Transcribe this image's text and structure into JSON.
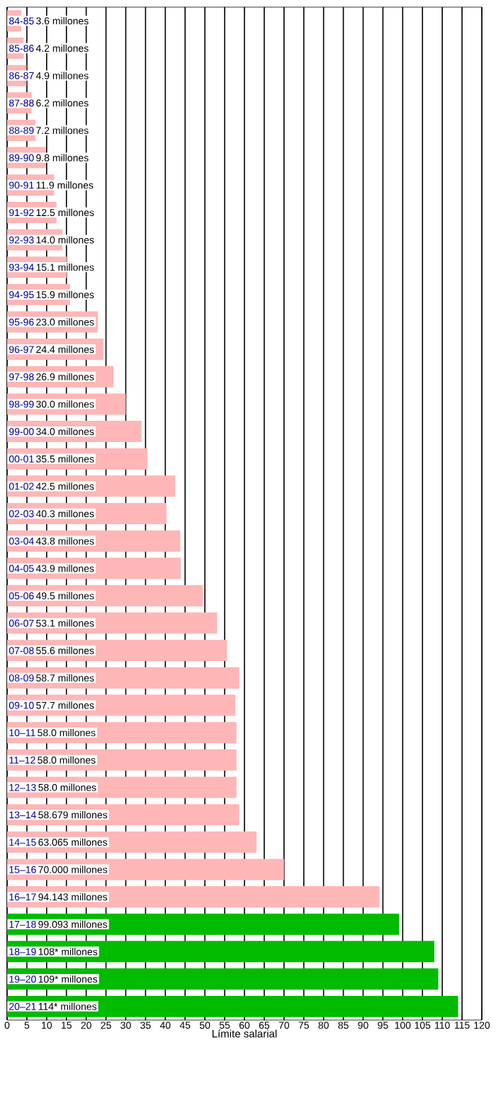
{
  "chart_data": {
    "type": "bar",
    "orientation": "horizontal",
    "xlabel": "Límite salarial",
    "categories": [
      "84-85",
      "85-86",
      "86-87",
      "87-88",
      "88-89",
      "89-90",
      "90-91",
      "91-92",
      "92-93",
      "93-94",
      "94-95",
      "95-96",
      "96-97",
      "97-98",
      "98-99",
      "99-00",
      "00-01",
      "01-02",
      "02-03",
      "03-04",
      "04-05",
      "05-06",
      "06-07",
      "07-08",
      "08-09",
      "09-10",
      "10–11",
      "11–12",
      "12–13",
      "13–14",
      "14–15",
      "15–16",
      "16–17",
      "17–18",
      "18–19",
      "19–20",
      "20–21"
    ],
    "values": [
      3.6,
      4.2,
      4.9,
      6.2,
      7.2,
      9.8,
      11.9,
      12.5,
      14.0,
      15.1,
      15.9,
      23.0,
      24.4,
      26.9,
      30.0,
      34.0,
      35.5,
      42.5,
      40.3,
      43.8,
      43.9,
      49.5,
      53.1,
      55.6,
      58.7,
      57.7,
      58.0,
      58.0,
      58.0,
      58.679,
      63.065,
      70.0,
      94.143,
      99.093,
      108,
      109,
      114
    ],
    "value_labels": [
      "3.6 millones",
      "4.2 millones",
      "4.9 millones",
      "6.2 millones",
      "7.2 millones",
      "9.8 millones",
      "11.9 millones",
      "12.5 millones",
      "14.0 millones",
      "15.1 millones",
      "15.9 millones",
      "23.0 millones",
      "24.4 millones",
      "26.9 millones",
      "30.0 millones",
      "34.0 millones",
      "35.5 millones",
      "42.5 millones",
      "40.3 millones",
      "43.8 millones",
      "43.9 millones",
      "49.5 millones",
      "53.1 millones",
      "55.6 millones",
      "58.7 millones",
      "57.7 millones",
      "58.0 millones",
      "58.0 millones",
      "58.0 millones",
      "58.679 millones",
      "63.065 millones",
      "70.000 millones",
      "94.143 millones",
      "99.093 millones",
      "108* millones",
      "109* millones",
      "114* millones"
    ],
    "colors": [
      "#ffb6b6",
      "#ffb6b6",
      "#ffb6b6",
      "#ffb6b6",
      "#ffb6b6",
      "#ffb6b6",
      "#ffb6b6",
      "#ffb6b6",
      "#ffb6b6",
      "#ffb6b6",
      "#ffb6b6",
      "#ffb6b6",
      "#ffb6b6",
      "#ffb6b6",
      "#ffb6b6",
      "#ffb6b6",
      "#ffb6b6",
      "#ffb6b6",
      "#ffb6b6",
      "#ffb6b6",
      "#ffb6b6",
      "#ffb6b6",
      "#ffb6b6",
      "#ffb6b6",
      "#ffb6b6",
      "#ffb6b6",
      "#ffb6b6",
      "#ffb6b6",
      "#ffb6b6",
      "#ffb6b6",
      "#ffb6b6",
      "#ffb6b6",
      "#ffb6b6",
      "#00bb00",
      "#00bb00",
      "#00bb00",
      "#00bb00"
    ],
    "xlim": [
      0,
      120
    ],
    "xticks": [
      0,
      5,
      10,
      15,
      20,
      25,
      30,
      35,
      40,
      45,
      50,
      55,
      60,
      65,
      70,
      75,
      80,
      85,
      90,
      95,
      100,
      105,
      110,
      115,
      120
    ],
    "grid": "x"
  }
}
